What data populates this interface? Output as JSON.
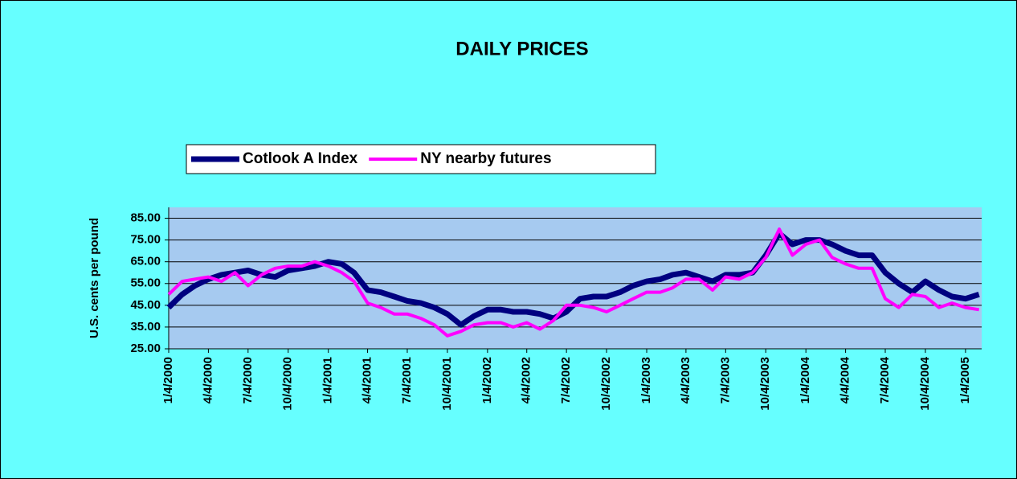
{
  "chart_data": {
    "type": "line",
    "title": "DAILY PRICES",
    "y_label": "U.S. cents per pound",
    "x": [
      "1/4/2000",
      "2/4/2000",
      "3/4/2000",
      "4/4/2000",
      "5/4/2000",
      "6/4/2000",
      "7/4/2000",
      "8/4/2000",
      "9/4/2000",
      "10/4/2000",
      "11/4/2000",
      "12/4/2000",
      "1/4/2001",
      "2/4/2001",
      "3/4/2001",
      "4/4/2001",
      "5/4/2001",
      "6/4/2001",
      "7/4/2001",
      "8/4/2001",
      "9/4/2001",
      "10/4/2001",
      "11/4/2001",
      "12/4/2001",
      "1/4/2002",
      "2/4/2002",
      "3/4/2002",
      "4/4/2002",
      "5/4/2002",
      "6/4/2002",
      "7/4/2002",
      "8/4/2002",
      "9/4/2002",
      "10/4/2002",
      "11/4/2002",
      "12/4/2002",
      "1/4/2003",
      "2/4/2003",
      "3/4/2003",
      "4/4/2003",
      "5/4/2003",
      "6/4/2003",
      "7/4/2003",
      "8/4/2003",
      "9/4/2003",
      "10/4/2003",
      "11/4/2003",
      "12/4/2003",
      "1/4/2004",
      "2/4/2004",
      "3/4/2004",
      "4/4/2004",
      "5/4/2004",
      "6/4/2004",
      "7/4/2004",
      "8/4/2004",
      "9/4/2004",
      "10/4/2004",
      "11/4/2004",
      "12/4/2004",
      "1/4/2005",
      "2/4/2005"
    ],
    "series": [
      {
        "name": "Cotlook A Index",
        "color": "#000080",
        "width": 7,
        "values": [
          44,
          50,
          54,
          57,
          59,
          60,
          61,
          59,
          58,
          61,
          62,
          63,
          65,
          64,
          60,
          52,
          51,
          49,
          47,
          46,
          44,
          41,
          36,
          40,
          43,
          43,
          42,
          42,
          41,
          39,
          42,
          48,
          49,
          49,
          51,
          54,
          56,
          57,
          59,
          60,
          58,
          56,
          59,
          59,
          60,
          68,
          78,
          73,
          75,
          75,
          73,
          70,
          68,
          68,
          60,
          55,
          51,
          56,
          52,
          49,
          48,
          50
        ]
      },
      {
        "name": "NY nearby futures",
        "color": "#ff00ff",
        "width": 4,
        "values": [
          50,
          56,
          57,
          58,
          56,
          60,
          54,
          59,
          62,
          63,
          63,
          65,
          63,
          60,
          56,
          46,
          44,
          41,
          41,
          39,
          36,
          31,
          33,
          36,
          37,
          37,
          35,
          37,
          34,
          38,
          45,
          45,
          44,
          42,
          45,
          48,
          51,
          51,
          53,
          57,
          57,
          52,
          58,
          57,
          60,
          67,
          80,
          68,
          73,
          75,
          67,
          64,
          62,
          62,
          48,
          44,
          50,
          49,
          44,
          46,
          44,
          43
        ]
      }
    ],
    "xlim": [
      "1/4/2000",
      "2/10/2005"
    ],
    "xticks": [
      "1/4/2000",
      "4/4/2000",
      "7/4/2000",
      "10/4/2000",
      "1/4/2001",
      "4/4/2001",
      "7/4/2001",
      "10/4/2001",
      "1/4/2002",
      "4/4/2002",
      "7/4/2002",
      "10/4/2002",
      "1/4/2003",
      "4/4/2003",
      "7/4/2003",
      "10/4/2003",
      "1/4/2004",
      "4/4/2004",
      "7/4/2004",
      "10/4/2004",
      "1/4/2005"
    ],
    "ylim": [
      25,
      90
    ],
    "yticks": [
      {
        "value": 25,
        "label": "25.00"
      },
      {
        "value": 35,
        "label": "35.00"
      },
      {
        "value": 45,
        "label": "45.00"
      },
      {
        "value": 55,
        "label": "55.00"
      },
      {
        "value": 65,
        "label": "65.00"
      },
      {
        "value": 75,
        "label": "75.00"
      },
      {
        "value": 85,
        "label": "85.00"
      }
    ],
    "grid": true,
    "legend": "top-left"
  }
}
